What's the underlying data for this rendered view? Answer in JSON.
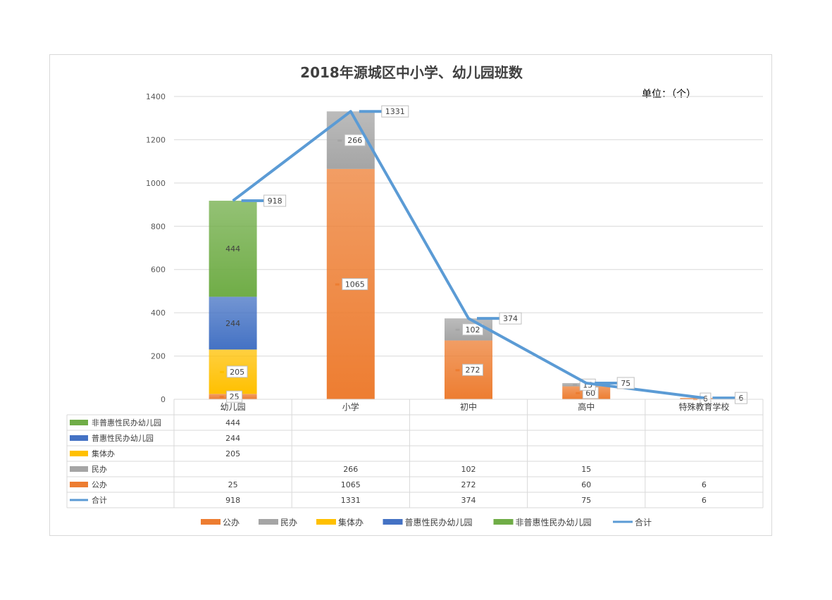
{
  "chart_data": {
    "type": "bar",
    "stacked": true,
    "title": "2018年源城区中小学、幼儿园班数",
    "unit_note": "单位：（个）",
    "categories": [
      "幼儿园",
      "小学",
      "初中",
      "高中",
      "特殊教育学校"
    ],
    "ylim": [
      0,
      1400
    ],
    "yticks": [
      0,
      200,
      400,
      600,
      800,
      1000,
      1200,
      1400
    ],
    "grid": true,
    "legend_position": "bottom",
    "series": [
      {
        "name": "公办",
        "kind": "bar",
        "color": "#ed7d31",
        "values": [
          25,
          1065,
          272,
          60,
          6
        ]
      },
      {
        "name": "民办",
        "kind": "bar",
        "color": "#a5a5a5",
        "values": [
          null,
          266,
          102,
          15,
          null
        ]
      },
      {
        "name": "集体办",
        "kind": "bar",
        "color": "#ffc000",
        "values": [
          205,
          null,
          null,
          null,
          null
        ]
      },
      {
        "name": "普惠性民办幼儿园",
        "kind": "bar",
        "color": "#4472c4",
        "values": [
          244,
          null,
          null,
          null,
          null
        ]
      },
      {
        "name": "非普惠性民办幼儿园",
        "kind": "bar",
        "color": "#70ad47",
        "values": [
          444,
          null,
          null,
          null,
          null
        ]
      },
      {
        "name": "合计",
        "kind": "line",
        "color": "#5b9bd5",
        "values": [
          918,
          1331,
          374,
          75,
          6
        ]
      }
    ],
    "table_row_order": [
      "非普惠性民办幼儿园",
      "普惠性民办幼儿园",
      "集体办",
      "民办",
      "公办",
      "合计"
    ]
  }
}
